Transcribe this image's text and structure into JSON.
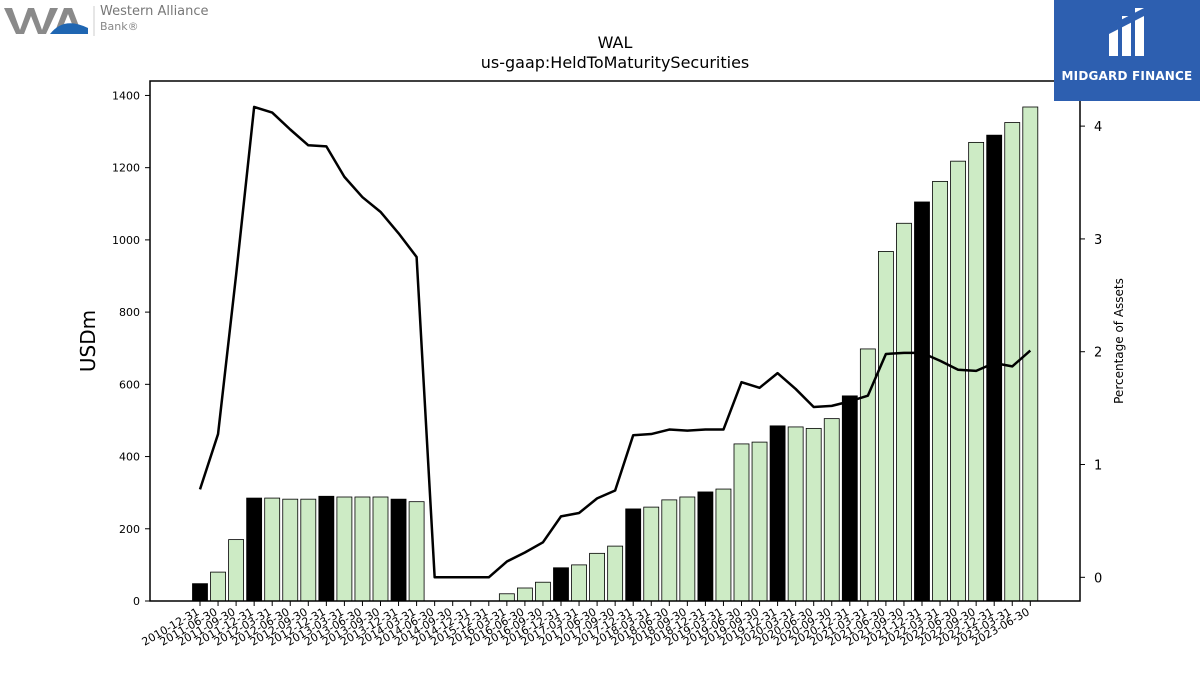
{
  "logos": {
    "left": {
      "name": "Western Alliance",
      "sub": "Bank"
    },
    "right": {
      "name": "MIDGARD FINANCE"
    }
  },
  "chart_data": {
    "type": "bar",
    "title": "WAL",
    "subtitle": "us-gaap:HeldToMaturitySecurities",
    "ylabel": "USDm",
    "y2label": "Percentage of Assets",
    "ylim": [
      0,
      1440
    ],
    "y2lim": [
      -0.21,
      4.4
    ],
    "yticks": [
      0,
      200,
      400,
      600,
      800,
      1000,
      1200,
      1400
    ],
    "y2ticks": [
      0,
      1,
      2,
      3,
      4
    ],
    "categories": [
      "2010-12-31",
      "2011-06-30",
      "2011-09-30",
      "2011-12-31",
      "2012-03-31",
      "2012-06-30",
      "2012-09-30",
      "2012-12-31",
      "2013-03-31",
      "2013-06-30",
      "2013-09-30",
      "2013-12-31",
      "2014-03-31",
      "2014-06-30",
      "2014-09-30",
      "2014-12-31",
      "2015-12-31",
      "2016-03-31",
      "2016-06-30",
      "2016-09-30",
      "2016-12-31",
      "2017-03-31",
      "2017-06-30",
      "2017-09-30",
      "2017-12-31",
      "2018-03-31",
      "2018-06-30",
      "2018-09-30",
      "2018-12-31",
      "2019-03-31",
      "2019-06-30",
      "2019-09-30",
      "2019-12-31",
      "2020-03-31",
      "2020-06-30",
      "2020-09-30",
      "2020-12-31",
      "2021-03-31",
      "2021-06-30",
      "2021-09-30",
      "2021-12-31",
      "2022-03-31",
      "2022-06-30",
      "2022-09-30",
      "2022-12-31",
      "2023-03-31",
      "2023-06-30"
    ],
    "series": [
      {
        "type": "bar",
        "values": [
          48,
          80,
          170,
          285,
          285,
          282,
          282,
          290,
          288,
          288,
          288,
          282,
          275,
          0,
          0,
          0,
          0,
          20,
          36,
          52,
          92,
          100,
          132,
          152,
          255,
          260,
          280,
          288,
          302,
          310,
          435,
          440,
          485,
          482,
          478,
          505,
          568,
          698,
          968,
          1046,
          1105,
          1162,
          1218,
          1270,
          1290,
          1325,
          1368
        ]
      },
      {
        "type": "line",
        "axis": "right",
        "values": [
          0.78,
          1.27,
          2.68,
          4.17,
          4.12,
          3.97,
          3.83,
          3.82,
          3.55,
          3.37,
          3.24,
          3.05,
          2.84,
          0.0,
          0.0,
          0.0,
          0.0,
          0.14,
          0.22,
          0.31,
          0.54,
          0.57,
          0.7,
          0.77,
          1.26,
          1.27,
          1.31,
          1.3,
          1.31,
          1.31,
          1.73,
          1.68,
          1.81,
          1.67,
          1.51,
          1.52,
          1.56,
          1.61,
          1.98,
          1.99,
          1.99,
          1.92,
          1.84,
          1.83,
          1.9,
          1.87,
          2.01
        ]
      }
    ],
    "bar_colors": {
      "quarter_end": "#000000",
      "other": "#cdebc5",
      "edge": "#000000"
    },
    "year_end_indices": [
      0,
      3,
      7,
      11,
      15,
      20,
      24,
      28,
      32,
      36,
      40,
      44
    ],
    "grid": false,
    "legend": "none"
  }
}
